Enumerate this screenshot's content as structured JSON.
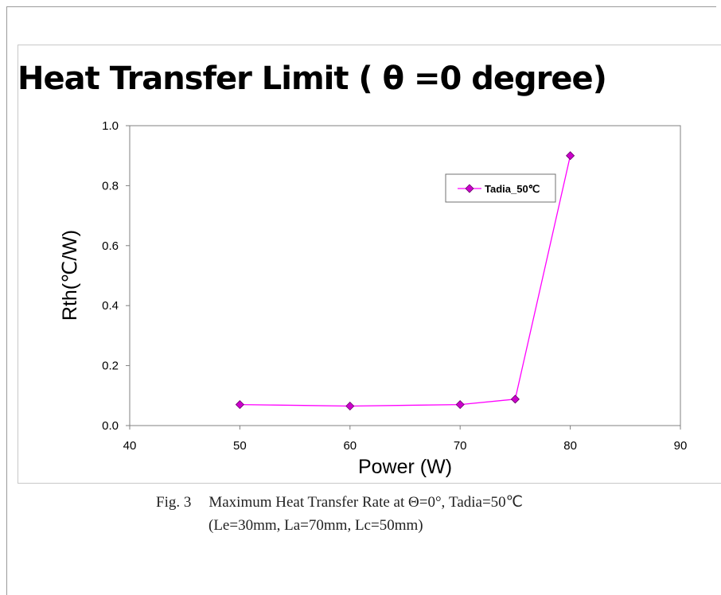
{
  "chart_data": {
    "type": "line",
    "title": "Heat Transfer Limit ( θ =0 degree)",
    "xlabel": "Power (W)",
    "ylabel": "Rth(℃/W)",
    "xlim": [
      40,
      90
    ],
    "ylim": [
      0.0,
      1.0
    ],
    "x_ticks": [
      "40",
      "50",
      "60",
      "70",
      "80",
      "90"
    ],
    "y_ticks": [
      "0.0",
      "0.2",
      "0.4",
      "0.6",
      "0.8",
      "1.0"
    ],
    "grid": false,
    "legend_position": "top-right",
    "series": [
      {
        "name": "Tadia_50℃",
        "color": "#ff00ff",
        "marker_color": "#cc00cc",
        "x": [
          50,
          60,
          70,
          75,
          80
        ],
        "y": [
          0.07,
          0.065,
          0.07,
          0.088,
          0.9
        ]
      }
    ]
  },
  "caption": {
    "figure_number": "Fig. 3",
    "line1": "Maximum Heat Transfer Rate at  Θ=0°, Tadia=50℃",
    "line2": "(Le=30mm, La=70mm, Lc=50mm)"
  }
}
